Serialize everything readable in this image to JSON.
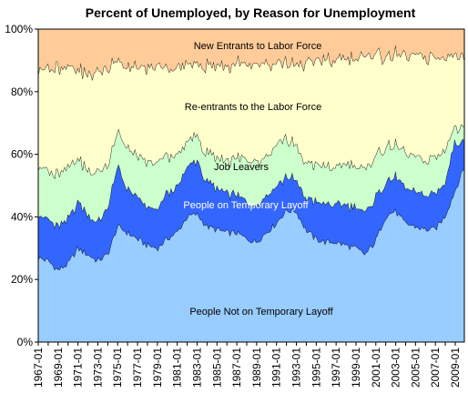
{
  "chart_data": {
    "type": "area",
    "stacked": "percent",
    "title": "Percent of Unemployed, by Reason for Unemployment",
    "xlabel": "",
    "ylabel": "",
    "ylim": [
      0,
      100
    ],
    "y_ticks": [
      "0%",
      "20%",
      "40%",
      "60%",
      "80%",
      "100%"
    ],
    "x_tick_labels": [
      "1967-01",
      "1969-01",
      "1971-01",
      "1973-01",
      "1975-01",
      "1977-01",
      "1979-01",
      "1981-01",
      "1983-01",
      "1985-01",
      "1987-01",
      "1989-01",
      "1991-01",
      "1993-01",
      "1995-01",
      "1997-01",
      "1999-01",
      "2001-01",
      "2003-01",
      "2005-01",
      "2007-01",
      "2009-01"
    ],
    "x": [
      "1967-01",
      "1968-01",
      "1969-01",
      "1970-01",
      "1971-01",
      "1972-01",
      "1973-01",
      "1974-01",
      "1975-01",
      "1976-01",
      "1977-01",
      "1978-01",
      "1979-01",
      "1980-01",
      "1981-01",
      "1982-01",
      "1983-01",
      "1984-01",
      "1985-01",
      "1986-01",
      "1987-01",
      "1988-01",
      "1989-01",
      "1990-01",
      "1991-01",
      "1992-01",
      "1993-01",
      "1994-01",
      "1995-01",
      "1996-01",
      "1997-01",
      "1998-01",
      "1999-01",
      "2000-01",
      "2001-01",
      "2002-01",
      "2003-01",
      "2004-01",
      "2005-01",
      "2006-01",
      "2007-01",
      "2008-01",
      "2009-01",
      "2009-12"
    ],
    "grid": false,
    "legend": "none",
    "series": [
      {
        "name": "People Not on Temporary Layoff",
        "color": "#99ccff",
        "values": [
          27,
          26,
          23,
          25,
          30,
          28,
          26,
          28,
          37,
          35,
          33,
          31,
          30,
          33,
          35,
          40,
          41,
          37,
          36,
          35,
          35,
          33,
          32,
          35,
          38,
          42,
          42,
          36,
          33,
          32,
          32,
          31,
          30,
          28,
          32,
          40,
          42,
          38,
          37,
          36,
          36,
          40,
          48,
          56
        ]
      },
      {
        "name": "People on Temporary Layoff",
        "color": "#3366ff",
        "values": [
          14,
          13,
          14,
          14,
          15,
          13,
          12,
          15,
          19,
          14,
          13,
          12,
          12,
          15,
          14,
          16,
          17,
          14,
          13,
          13,
          12,
          12,
          12,
          12,
          12,
          11,
          10,
          10,
          12,
          12,
          12,
          13,
          13,
          13,
          14,
          11,
          11,
          11,
          11,
          11,
          11,
          11,
          16,
          8
        ]
      },
      {
        "name": "Job Leavers",
        "color": "#ccffcc",
        "values": [
          16,
          15,
          17,
          17,
          14,
          14,
          16,
          14,
          11,
          13,
          13,
          14,
          15,
          12,
          10,
          8,
          8,
          9,
          10,
          10,
          12,
          13,
          14,
          12,
          13,
          12,
          11,
          11,
          12,
          12,
          12,
          13,
          13,
          14,
          13,
          12,
          10,
          11,
          11,
          11,
          12,
          11,
          5,
          5
        ]
      },
      {
        "name": "Re-entrants to the Labor Force",
        "color": "#ffffcc",
        "values": [
          31,
          33,
          34,
          32,
          28,
          31,
          32,
          31,
          23,
          26,
          28,
          30,
          31,
          28,
          28,
          25,
          23,
          28,
          29,
          30,
          30,
          31,
          31,
          30,
          26,
          24,
          26,
          32,
          33,
          34,
          34,
          34,
          34,
          36,
          33,
          29,
          29,
          31,
          32,
          33,
          32,
          30,
          23,
          22
        ]
      },
      {
        "name": "New Entrants to Labor Force",
        "color": "#ffcc99",
        "values": [
          12,
          13,
          12,
          12,
          13,
          14,
          14,
          12,
          10,
          12,
          13,
          13,
          12,
          12,
          13,
          11,
          11,
          12,
          12,
          12,
          11,
          11,
          11,
          11,
          11,
          11,
          11,
          11,
          10,
          10,
          10,
          9,
          10,
          9,
          8,
          8,
          8,
          9,
          9,
          9,
          9,
          8,
          8,
          9
        ]
      }
    ]
  }
}
